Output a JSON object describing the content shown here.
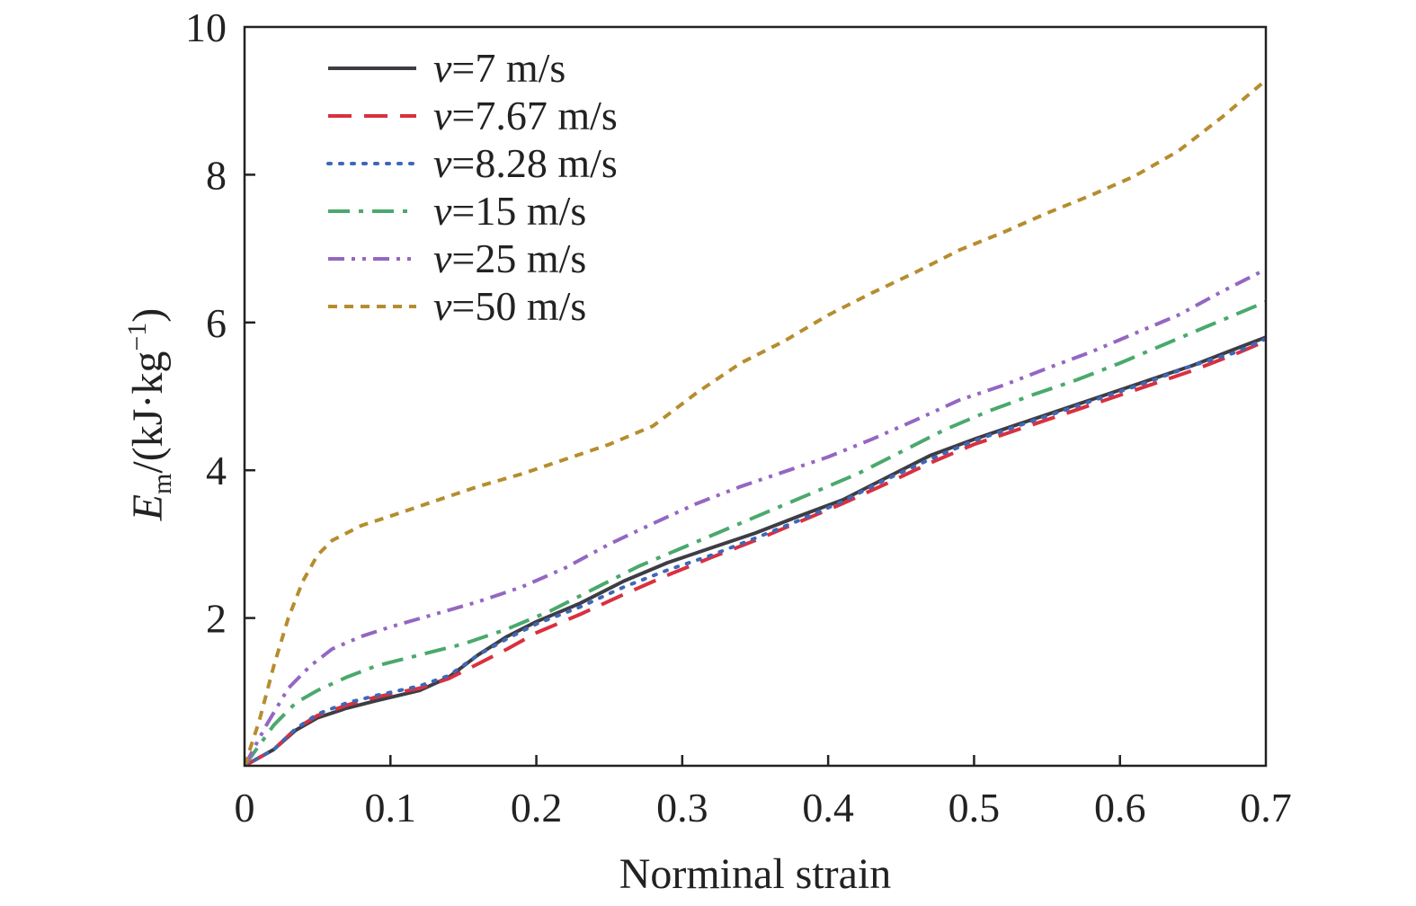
{
  "chart_data": {
    "type": "line",
    "xlabel": "Norminal strain",
    "ylabel_main": "E",
    "ylabel_sub": "m",
    "ylabel_unit": "/(kJ·kg",
    "ylabel_exp": "−1",
    "ylabel_close": ")",
    "xlim": [
      0,
      0.7
    ],
    "ylim": [
      0,
      10
    ],
    "xticks": [
      0,
      0.1,
      0.2,
      0.3,
      0.4,
      0.5,
      0.6,
      0.7
    ],
    "xtick_labels": [
      "0",
      "0.1",
      "0.2",
      "0.3",
      "0.4",
      "0.5",
      "0.6",
      "0.7"
    ],
    "yticks": [
      2,
      4,
      6,
      8,
      10
    ],
    "ytick_labels": [
      "2",
      "4",
      "6",
      "8",
      "10"
    ],
    "legend_position": "top-left",
    "series": [
      {
        "name_var": "v",
        "name_rest": "=7 m/s",
        "color": "#3d3d45",
        "dash": "solid",
        "x": [
          0,
          0.02,
          0.035,
          0.05,
          0.07,
          0.09,
          0.12,
          0.14,
          0.16,
          0.18,
          0.2,
          0.23,
          0.26,
          0.29,
          0.32,
          0.35,
          0.38,
          0.41,
          0.44,
          0.47,
          0.5,
          0.53,
          0.56,
          0.59,
          0.62,
          0.65,
          0.68,
          0.7
        ],
        "y": [
          0,
          0.22,
          0.48,
          0.65,
          0.78,
          0.88,
          1.02,
          1.2,
          1.5,
          1.75,
          1.95,
          2.2,
          2.5,
          2.75,
          2.95,
          3.15,
          3.38,
          3.6,
          3.9,
          4.2,
          4.42,
          4.62,
          4.82,
          5.02,
          5.22,
          5.42,
          5.65,
          5.8
        ]
      },
      {
        "name_var": "v",
        "name_rest": "=7.67 m/s",
        "color": "#d9303f",
        "dash": "long-dash",
        "x": [
          0,
          0.02,
          0.035,
          0.05,
          0.07,
          0.09,
          0.12,
          0.14,
          0.16,
          0.18,
          0.2,
          0.23,
          0.26,
          0.29,
          0.32,
          0.35,
          0.38,
          0.41,
          0.44,
          0.47,
          0.5,
          0.53,
          0.56,
          0.59,
          0.62,
          0.65,
          0.68,
          0.7
        ],
        "y": [
          0,
          0.22,
          0.5,
          0.68,
          0.82,
          0.93,
          1.05,
          1.18,
          1.38,
          1.58,
          1.8,
          2.05,
          2.32,
          2.58,
          2.82,
          3.05,
          3.3,
          3.55,
          3.82,
          4.1,
          4.35,
          4.55,
          4.75,
          4.95,
          5.15,
          5.35,
          5.58,
          5.75
        ]
      },
      {
        "name_var": "v",
        "name_rest": "=8.28 m/s",
        "color": "#3f67b8",
        "dash": "dotted",
        "x": [
          0,
          0.02,
          0.035,
          0.05,
          0.07,
          0.09,
          0.12,
          0.14,
          0.16,
          0.18,
          0.2,
          0.23,
          0.26,
          0.29,
          0.32,
          0.35,
          0.38,
          0.41,
          0.44,
          0.47,
          0.5,
          0.53,
          0.56,
          0.59,
          0.62,
          0.65,
          0.68,
          0.7
        ],
        "y": [
          0,
          0.22,
          0.5,
          0.7,
          0.85,
          0.95,
          1.08,
          1.22,
          1.5,
          1.72,
          1.92,
          2.15,
          2.42,
          2.65,
          2.85,
          3.08,
          3.32,
          3.58,
          3.88,
          4.15,
          4.4,
          4.6,
          4.8,
          5.0,
          5.2,
          5.42,
          5.6,
          5.78
        ]
      },
      {
        "name_var": "v",
        "name_rest": "=15 m/s",
        "color": "#4aa96c",
        "dash": "dash-dot",
        "x": [
          0,
          0.02,
          0.035,
          0.05,
          0.07,
          0.09,
          0.12,
          0.15,
          0.18,
          0.21,
          0.24,
          0.27,
          0.3,
          0.33,
          0.36,
          0.39,
          0.42,
          0.45,
          0.48,
          0.51,
          0.54,
          0.57,
          0.6,
          0.63,
          0.66,
          0.7
        ],
        "y": [
          0,
          0.55,
          0.85,
          1.02,
          1.2,
          1.35,
          1.5,
          1.65,
          1.85,
          2.1,
          2.4,
          2.7,
          2.95,
          3.2,
          3.45,
          3.7,
          3.95,
          4.25,
          4.55,
          4.8,
          5.02,
          5.22,
          5.45,
          5.7,
          5.95,
          6.28
        ]
      },
      {
        "name_var": "v",
        "name_rest": "=25 m/s",
        "color": "#9467c2",
        "dash": "dash-dot-dot",
        "x": [
          0,
          0.015,
          0.03,
          0.045,
          0.06,
          0.08,
          0.1,
          0.13,
          0.16,
          0.19,
          0.22,
          0.25,
          0.28,
          0.31,
          0.34,
          0.37,
          0.4,
          0.43,
          0.46,
          0.49,
          0.52,
          0.55,
          0.58,
          0.61,
          0.64,
          0.67,
          0.7
        ],
        "y": [
          0,
          0.55,
          1.05,
          1.35,
          1.58,
          1.75,
          1.88,
          2.05,
          2.22,
          2.42,
          2.68,
          3.0,
          3.28,
          3.55,
          3.78,
          3.98,
          4.18,
          4.42,
          4.68,
          4.95,
          5.15,
          5.38,
          5.6,
          5.85,
          6.1,
          6.42,
          6.72
        ]
      },
      {
        "name_var": "v",
        "name_rest": "=50 m/s",
        "color": "#b68d2e",
        "dash": "short-dash",
        "x": [
          0,
          0.01,
          0.02,
          0.03,
          0.04,
          0.05,
          0.06,
          0.08,
          0.1,
          0.13,
          0.16,
          0.19,
          0.22,
          0.25,
          0.28,
          0.31,
          0.34,
          0.37,
          0.4,
          0.43,
          0.46,
          0.49,
          0.52,
          0.55,
          0.58,
          0.61,
          0.64,
          0.67,
          0.7
        ],
        "y": [
          0,
          0.6,
          1.35,
          2.0,
          2.5,
          2.85,
          3.05,
          3.25,
          3.38,
          3.58,
          3.78,
          3.95,
          4.15,
          4.35,
          4.6,
          5.05,
          5.45,
          5.75,
          6.1,
          6.4,
          6.68,
          6.98,
          7.22,
          7.48,
          7.72,
          7.98,
          8.32,
          8.78,
          9.28
        ]
      }
    ]
  }
}
